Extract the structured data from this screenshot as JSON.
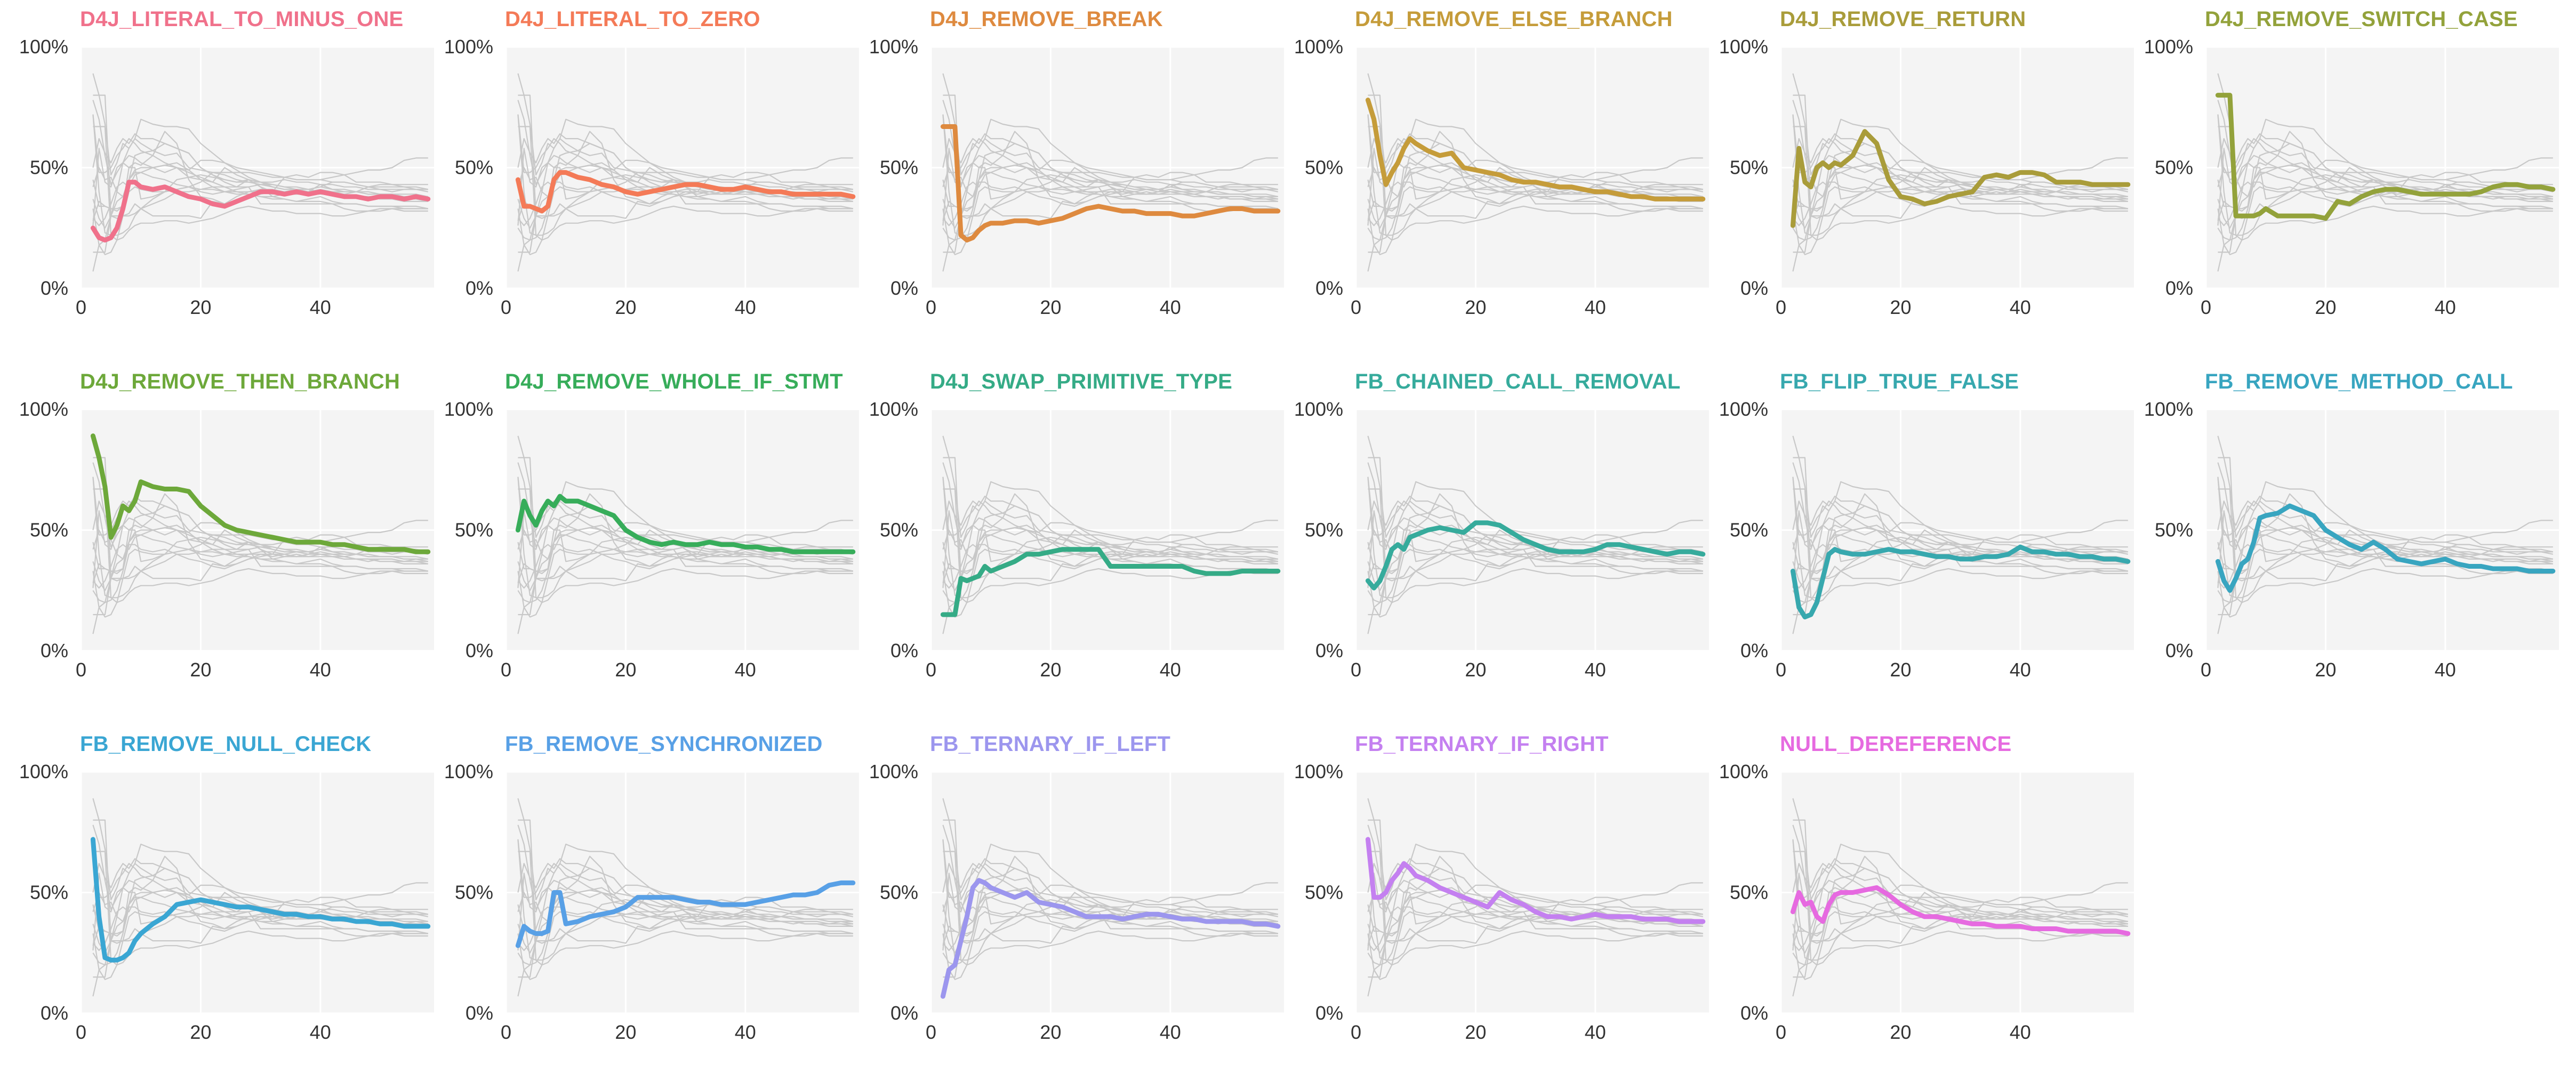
{
  "chart_data": {
    "type": "line",
    "layout": "small-multiples",
    "xlim": [
      0,
      59
    ],
    "ylim": [
      0,
      100
    ],
    "xticks": [
      0,
      20,
      40
    ],
    "xtick_labels": [
      "0",
      "20",
      "40"
    ],
    "yticks": [
      0,
      50,
      100
    ],
    "ytick_labels": [
      "0%",
      "50%",
      "100%"
    ],
    "grid": true,
    "background_series_color": "#c8c8c8",
    "background_panel_color": "#f4f4f4",
    "x": [
      2,
      3,
      4,
      5,
      6,
      7,
      8,
      9,
      10,
      12,
      14,
      16,
      18,
      20,
      22,
      24,
      26,
      28,
      30,
      32,
      34,
      36,
      38,
      40,
      42,
      44,
      46,
      48,
      50,
      52,
      54,
      56,
      58
    ],
    "series": [
      {
        "name": "D4J_LITERAL_TO_MINUS_ONE",
        "color": "#f0718b",
        "values": [
          25,
          21,
          20,
          21,
          25,
          33,
          44,
          44,
          42,
          41,
          42,
          40,
          38,
          37,
          35,
          34,
          36,
          38,
          40,
          40,
          39,
          40,
          39,
          40,
          39,
          38,
          38,
          37,
          38,
          38,
          37,
          38,
          37
        ]
      },
      {
        "name": "D4J_LITERAL_TO_ZERO",
        "color": "#f47a57",
        "values": [
          45,
          34,
          34,
          33,
          32,
          34,
          45,
          48,
          48,
          46,
          45,
          43,
          42,
          40,
          39,
          40,
          41,
          42,
          43,
          43,
          42,
          41,
          41,
          42,
          41,
          40,
          40,
          39,
          39,
          39,
          39,
          39,
          38
        ]
      },
      {
        "name": "D4J_REMOVE_BREAK",
        "color": "#de8a3f",
        "values": [
          67,
          67,
          67,
          22,
          20,
          21,
          24,
          26,
          27,
          27,
          28,
          28,
          27,
          28,
          29,
          31,
          33,
          34,
          33,
          32,
          32,
          31,
          31,
          31,
          30,
          30,
          31,
          32,
          33,
          33,
          32,
          32,
          32
        ]
      },
      {
        "name": "D4J_REMOVE_ELSE_BRANCH",
        "color": "#c59c3a",
        "values": [
          78,
          70,
          55,
          43,
          48,
          52,
          58,
          62,
          60,
          57,
          55,
          56,
          50,
          49,
          48,
          47,
          45,
          44,
          44,
          43,
          42,
          42,
          41,
          40,
          40,
          39,
          38,
          38,
          37,
          37,
          37,
          37,
          37
        ]
      },
      {
        "name": "D4J_REMOVE_RETURN",
        "color": "#a99c3a",
        "values": [
          26,
          58,
          44,
          42,
          50,
          52,
          50,
          52,
          51,
          55,
          65,
          60,
          45,
          38,
          37,
          35,
          36,
          38,
          39,
          40,
          46,
          47,
          46,
          48,
          48,
          47,
          44,
          44,
          44,
          43,
          43,
          43,
          43
        ]
      },
      {
        "name": "D4J_REMOVE_SWITCH_CASE",
        "color": "#93a23b",
        "values": [
          80,
          80,
          80,
          30,
          30,
          30,
          30,
          31,
          33,
          30,
          30,
          30,
          30,
          29,
          36,
          35,
          38,
          40,
          41,
          41,
          40,
          39,
          39,
          39,
          39,
          39,
          40,
          42,
          43,
          43,
          42,
          42,
          41
        ]
      },
      {
        "name": "D4J_REMOVE_THEN_BRANCH",
        "color": "#6da83a",
        "values": [
          89,
          80,
          68,
          47,
          52,
          60,
          58,
          62,
          70,
          68,
          67,
          67,
          66,
          60,
          56,
          52,
          50,
          49,
          48,
          47,
          46,
          45,
          45,
          45,
          44,
          44,
          43,
          42,
          42,
          42,
          42,
          41,
          41
        ]
      },
      {
        "name": "D4J_REMOVE_WHOLE_IF_STMT",
        "color": "#37ad5a",
        "values": [
          50,
          62,
          56,
          52,
          58,
          62,
          60,
          64,
          62,
          62,
          60,
          58,
          56,
          50,
          47,
          45,
          44,
          45,
          44,
          44,
          45,
          44,
          44,
          43,
          43,
          42,
          42,
          41,
          41,
          41,
          41,
          41,
          41
        ]
      },
      {
        "name": "D4J_SWAP_PRIMITIVE_TYPE",
        "color": "#35ab86",
        "values": [
          15,
          15,
          15,
          30,
          29,
          30,
          31,
          35,
          33,
          35,
          37,
          40,
          40,
          41,
          42,
          42,
          42,
          42,
          35,
          35,
          35,
          35,
          35,
          35,
          35,
          33,
          32,
          32,
          32,
          33,
          33,
          33,
          33
        ]
      },
      {
        "name": "FB_CHAINED_CALL_REMOVAL",
        "color": "#36ab9c",
        "values": [
          29,
          26,
          29,
          35,
          42,
          44,
          42,
          47,
          48,
          50,
          51,
          50,
          49,
          53,
          53,
          52,
          49,
          46,
          44,
          42,
          41,
          41,
          41,
          42,
          44,
          44,
          43,
          42,
          41,
          40,
          41,
          41,
          40
        ]
      },
      {
        "name": "FB_FLIP_TRUE_FALSE",
        "color": "#37a8ae",
        "values": [
          33,
          18,
          14,
          15,
          20,
          30,
          40,
          42,
          41,
          40,
          40,
          41,
          42,
          41,
          41,
          40,
          39,
          39,
          38,
          38,
          39,
          39,
          40,
          43,
          41,
          41,
          40,
          40,
          39,
          39,
          38,
          38,
          37
        ]
      },
      {
        "name": "FB_REMOVE_METHOD_CALL",
        "color": "#38a5c0",
        "values": [
          37,
          29,
          25,
          30,
          36,
          38,
          45,
          55,
          56,
          57,
          60,
          58,
          56,
          50,
          47,
          44,
          42,
          45,
          42,
          38,
          37,
          36,
          37,
          38,
          36,
          35,
          35,
          34,
          34,
          34,
          33,
          33,
          33
        ]
      },
      {
        "name": "FB_REMOVE_NULL_CHECK",
        "color": "#3aa6d3",
        "values": [
          72,
          40,
          23,
          22,
          22,
          23,
          25,
          30,
          33,
          37,
          40,
          45,
          46,
          47,
          46,
          45,
          44,
          44,
          43,
          42,
          41,
          41,
          40,
          40,
          39,
          39,
          38,
          38,
          37,
          37,
          36,
          36,
          36
        ]
      },
      {
        "name": "FB_REMOVE_SYNCHRONIZED",
        "color": "#58a0e6",
        "values": [
          28,
          36,
          34,
          33,
          33,
          34,
          50,
          50,
          37,
          38,
          40,
          41,
          42,
          44,
          48,
          48,
          48,
          48,
          47,
          46,
          46,
          45,
          45,
          45,
          46,
          47,
          48,
          49,
          49,
          50,
          53,
          54,
          54
        ]
      },
      {
        "name": "FB_TERNARY_IF_LEFT",
        "color": "#9c96ee",
        "values": [
          7,
          18,
          20,
          30,
          40,
          52,
          55,
          54,
          52,
          50,
          48,
          50,
          46,
          45,
          44,
          42,
          40,
          40,
          40,
          39,
          40,
          41,
          41,
          40,
          39,
          39,
          38,
          38,
          38,
          38,
          37,
          37,
          36
        ]
      },
      {
        "name": "FB_TERNARY_IF_RIGHT",
        "color": "#c480f0",
        "values": [
          72,
          48,
          48,
          50,
          55,
          58,
          62,
          60,
          57,
          55,
          52,
          50,
          48,
          46,
          44,
          50,
          47,
          45,
          42,
          40,
          40,
          39,
          40,
          41,
          40,
          40,
          40,
          39,
          39,
          39,
          38,
          38,
          38
        ]
      },
      {
        "name": "NULL_DEREFERENCE",
        "color": "#e66ae0",
        "values": [
          42,
          50,
          45,
          46,
          40,
          38,
          45,
          49,
          50,
          50,
          51,
          52,
          49,
          45,
          42,
          40,
          40,
          39,
          38,
          37,
          37,
          36,
          36,
          36,
          35,
          35,
          35,
          34,
          34,
          34,
          34,
          34,
          33
        ]
      }
    ]
  }
}
